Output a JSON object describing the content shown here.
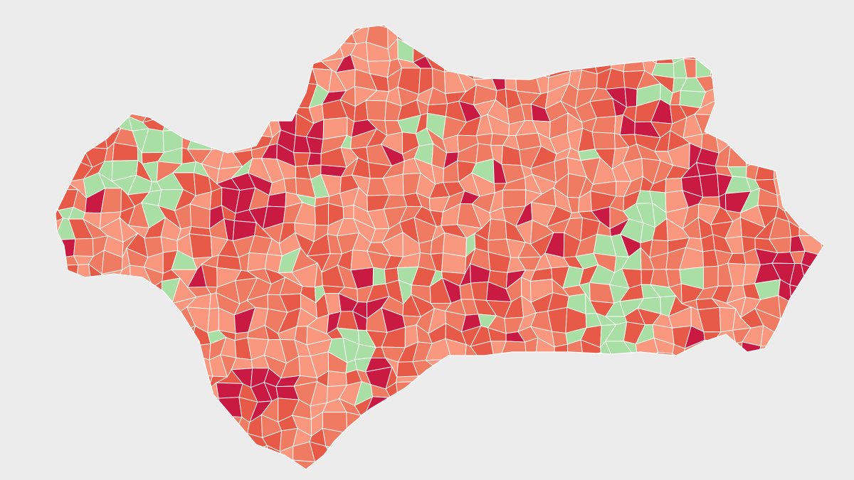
{
  "map": {
    "palette": [
      "#f9977f",
      "#f07b63",
      "#e85a48",
      "#c81a42",
      "#a9dfa5"
    ]
  }
}
